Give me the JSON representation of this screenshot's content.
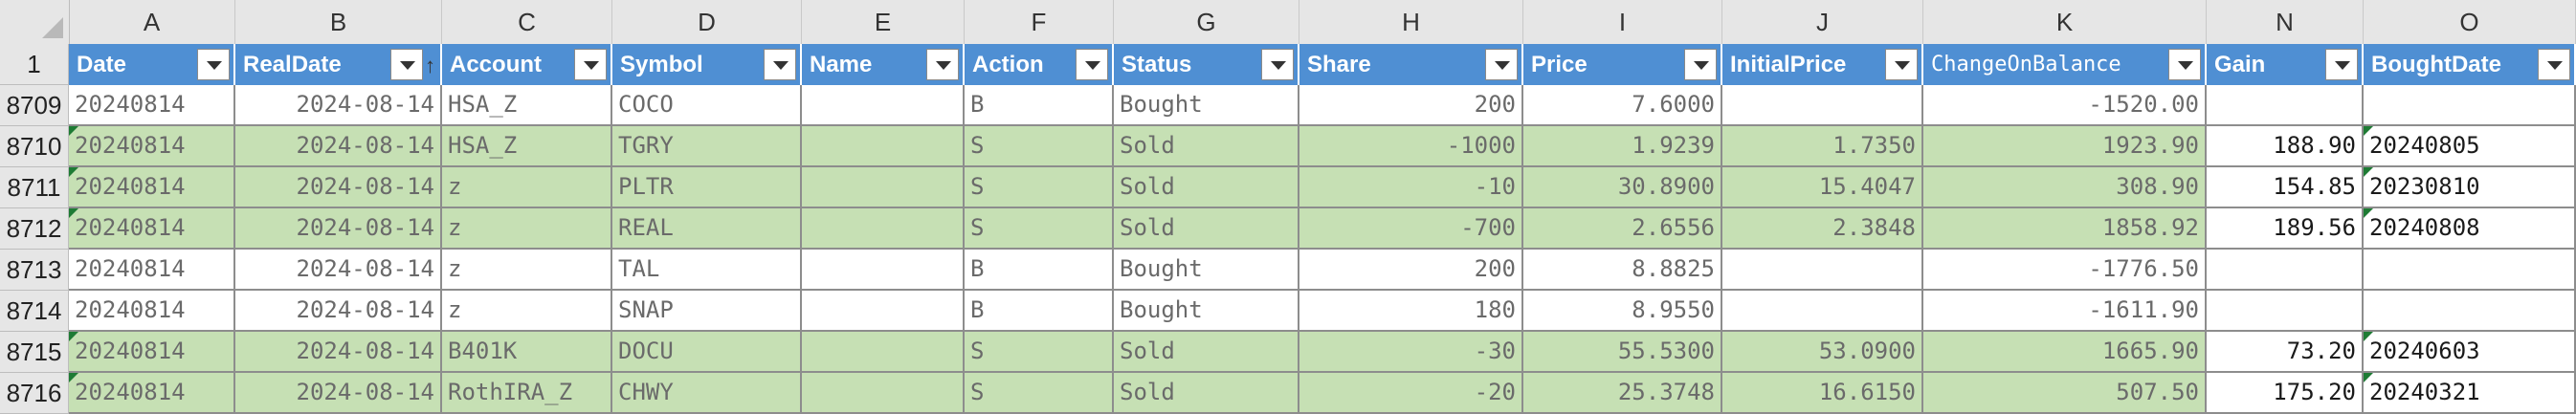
{
  "columns": [
    "A",
    "B",
    "C",
    "D",
    "E",
    "F",
    "G",
    "H",
    "I",
    "J",
    "K",
    "",
    "N",
    "O"
  ],
  "header_row_number": "1",
  "headers": [
    "Date",
    "RealDate",
    "Account",
    "Symbol",
    "Name",
    "Action",
    "Status",
    "Share",
    "Price",
    "InitialPrice",
    "ChangeOnBalance",
    "Gain",
    "BoughtDate"
  ],
  "rows": [
    {
      "num": "8709",
      "Date": "20240814",
      "RealDate": "2024-08-14",
      "Account": "HSA_Z",
      "Symbol": "COCO",
      "Name": "",
      "Action": "B",
      "Status": "Bought",
      "Share": "200",
      "Price": "7.6000",
      "InitialPrice": "",
      "ChangeOnBalance": "-1520.00",
      "Gain": "",
      "BoughtDate": "",
      "band": "white"
    },
    {
      "num": "8710",
      "Date": "20240814",
      "RealDate": "2024-08-14",
      "Account": "HSA_Z",
      "Symbol": "TGRY",
      "Name": "",
      "Action": "S",
      "Status": "Sold",
      "Share": "-1000",
      "Price": "1.9239",
      "InitialPrice": "1.7350",
      "ChangeOnBalance": "1923.90",
      "Gain": "188.90",
      "BoughtDate": "20240805",
      "band": "green"
    },
    {
      "num": "8711",
      "Date": "20240814",
      "RealDate": "2024-08-14",
      "Account": "z",
      "Symbol": "PLTR",
      "Name": "",
      "Action": "S",
      "Status": "Sold",
      "Share": "-10",
      "Price": "30.8900",
      "InitialPrice": "15.4047",
      "ChangeOnBalance": "308.90",
      "Gain": "154.85",
      "BoughtDate": "20230810",
      "band": "green"
    },
    {
      "num": "8712",
      "Date": "20240814",
      "RealDate": "2024-08-14",
      "Account": "z",
      "Symbol": "REAL",
      "Name": "",
      "Action": "S",
      "Status": "Sold",
      "Share": "-700",
      "Price": "2.6556",
      "InitialPrice": "2.3848",
      "ChangeOnBalance": "1858.92",
      "Gain": "189.56",
      "BoughtDate": "20240808",
      "band": "green"
    },
    {
      "num": "8713",
      "Date": "20240814",
      "RealDate": "2024-08-14",
      "Account": "z",
      "Symbol": "TAL",
      "Name": "",
      "Action": "B",
      "Status": "Bought",
      "Share": "200",
      "Price": "8.8825",
      "InitialPrice": "",
      "ChangeOnBalance": "-1776.50",
      "Gain": "",
      "BoughtDate": "",
      "band": "white"
    },
    {
      "num": "8714",
      "Date": "20240814",
      "RealDate": "2024-08-14",
      "Account": "z",
      "Symbol": "SNAP",
      "Name": "",
      "Action": "B",
      "Status": "Bought",
      "Share": "180",
      "Price": "8.9550",
      "InitialPrice": "",
      "ChangeOnBalance": "-1611.90",
      "Gain": "",
      "BoughtDate": "",
      "band": "white"
    },
    {
      "num": "8715",
      "Date": "20240814",
      "RealDate": "2024-08-14",
      "Account": "B401K",
      "Symbol": "DOCU",
      "Name": "",
      "Action": "S",
      "Status": "Sold",
      "Share": "-30",
      "Price": "55.5300",
      "InitialPrice": "53.0900",
      "ChangeOnBalance": "1665.90",
      "Gain": "73.20",
      "BoughtDate": "20240603",
      "band": "green"
    },
    {
      "num": "8716",
      "Date": "20240814",
      "RealDate": "2024-08-14",
      "Account": "RothIRA_Z",
      "Symbol": "CHWY",
      "Name": "",
      "Action": "S",
      "Status": "Sold",
      "Share": "-20",
      "Price": "25.3748",
      "InitialPrice": "16.6150",
      "ChangeOnBalance": "507.50",
      "Gain": "175.20",
      "BoughtDate": "20240321",
      "band": "green"
    }
  ],
  "colors": {
    "header": "#4f8fd3",
    "green_band": "#c6e0b4",
    "grid": "#8d8d8d"
  }
}
